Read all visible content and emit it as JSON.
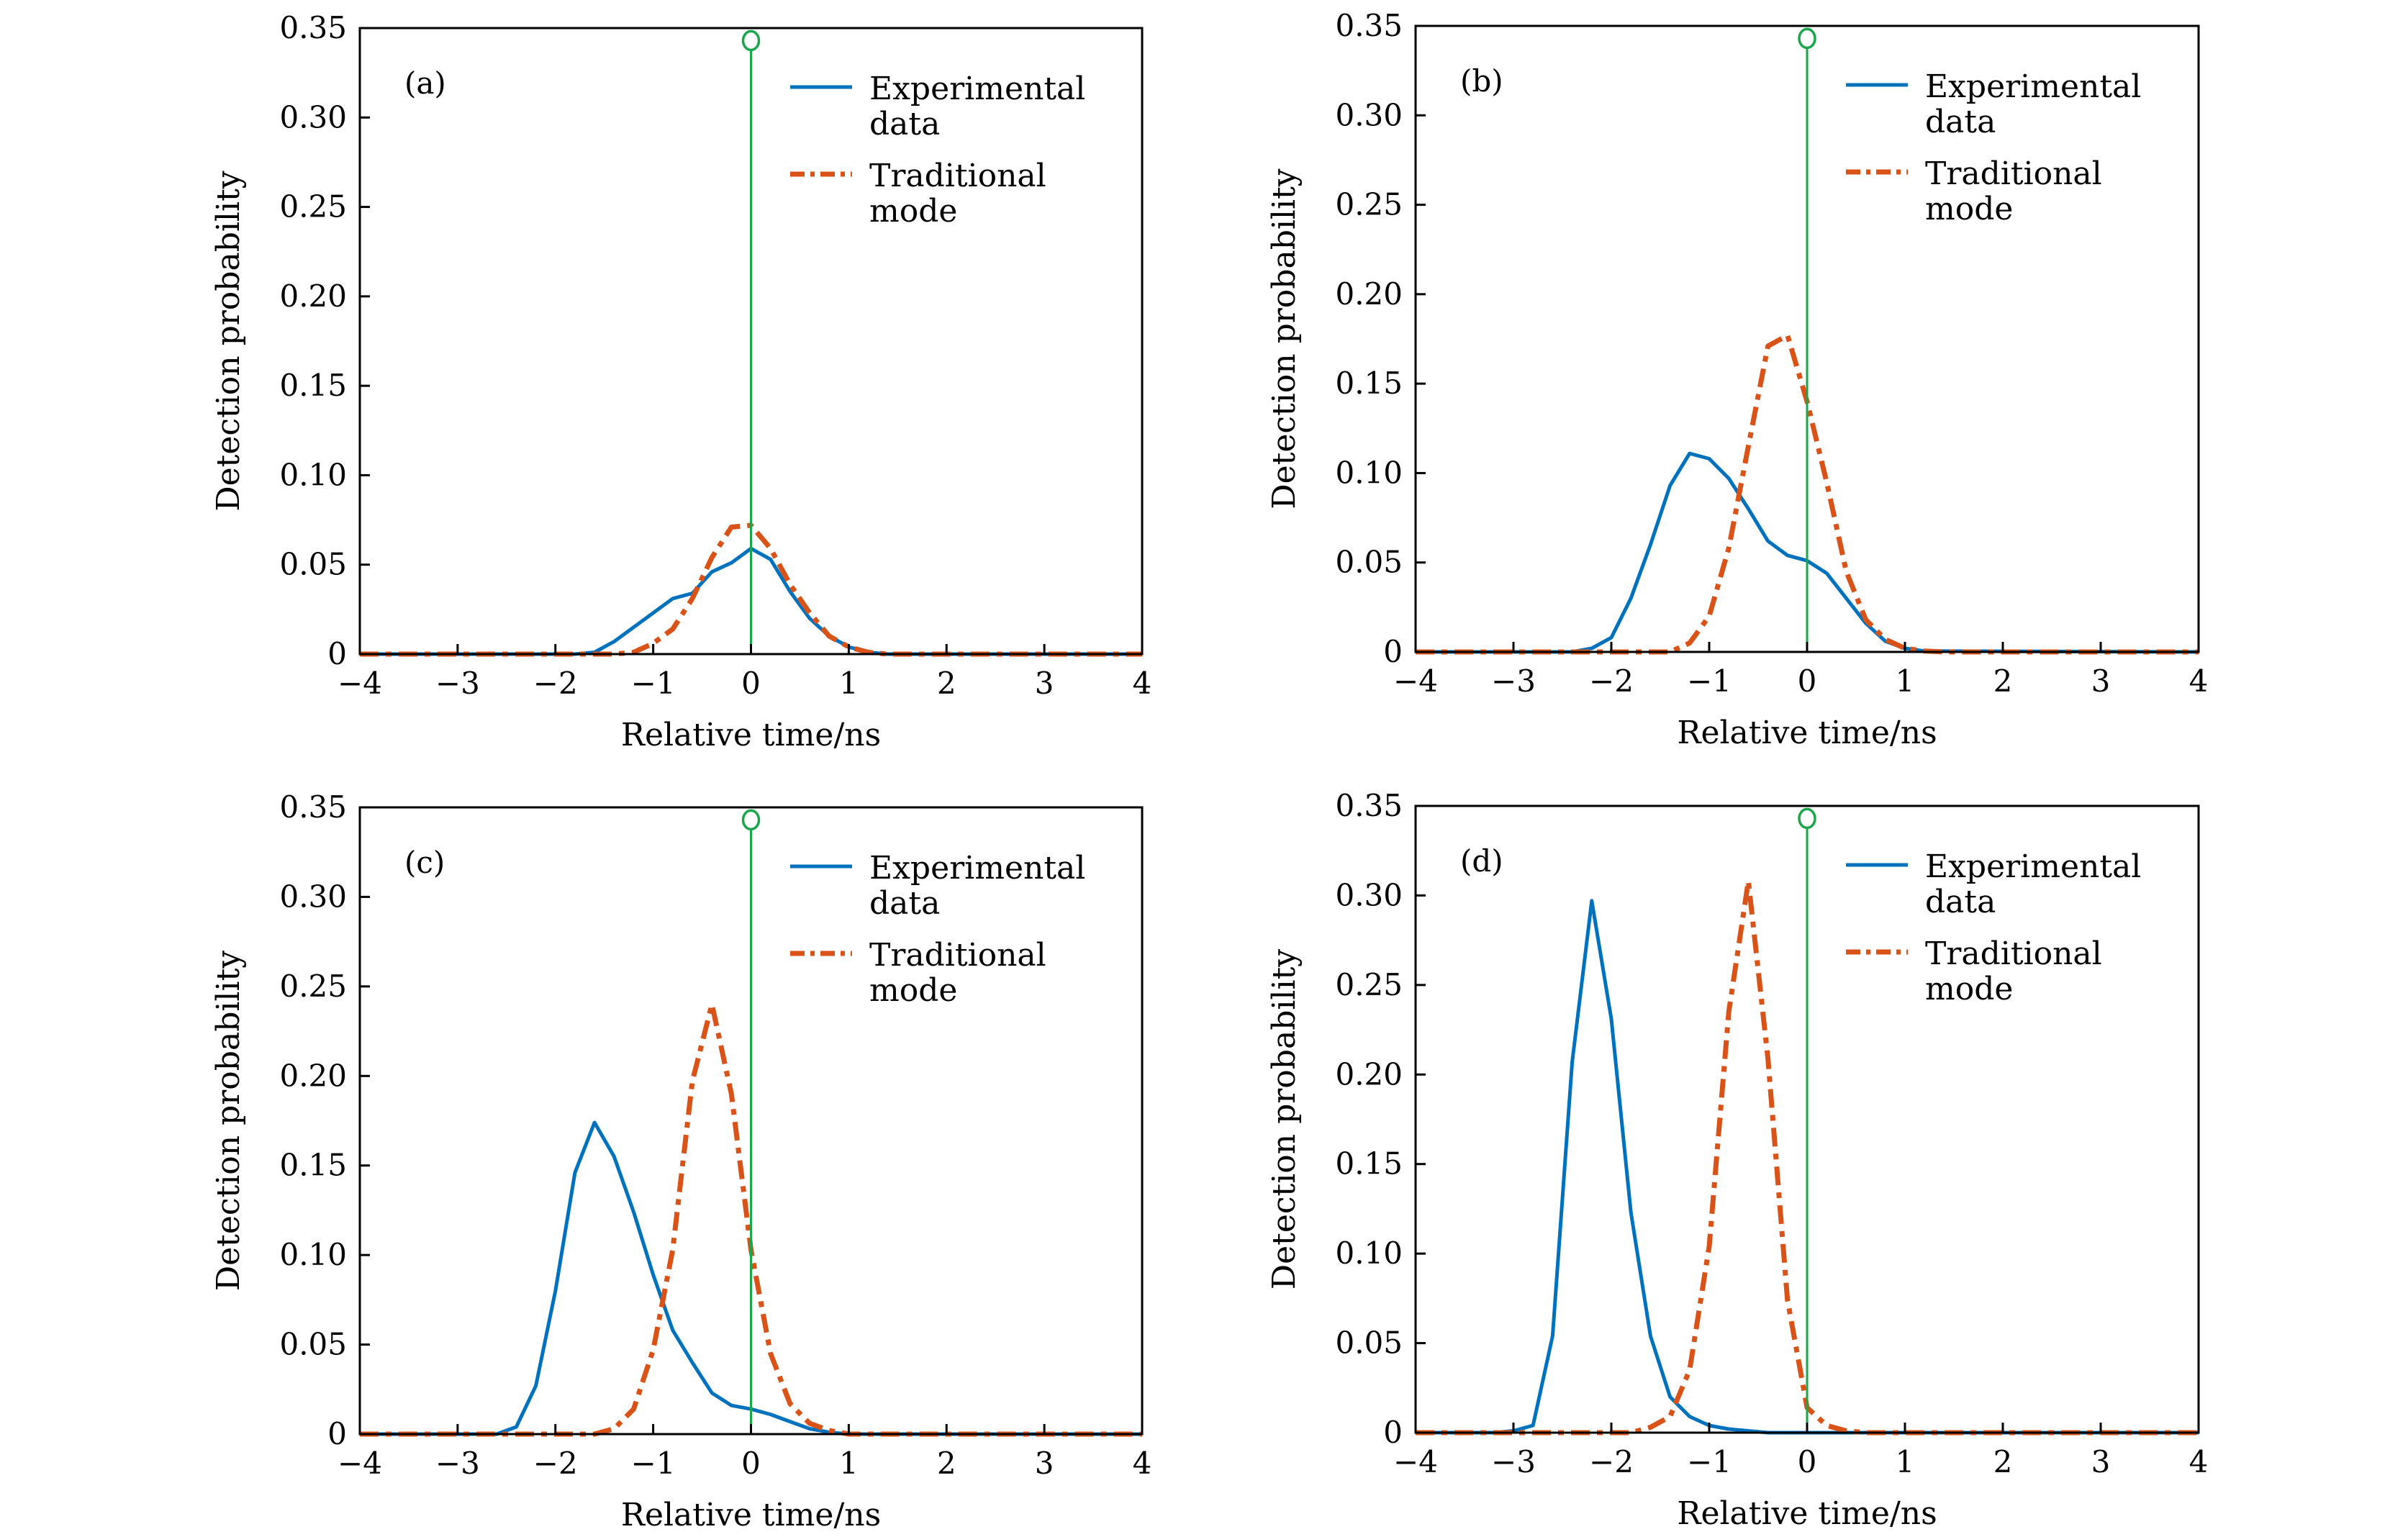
{
  "chart_data": [
    {
      "type": "line",
      "panel_label": "(a)",
      "xlabel": "Relative time/ns",
      "ylabel": "Detection probability",
      "xlim": [
        -4,
        4
      ],
      "ylim": [
        0,
        0.35
      ],
      "xticks": [
        "−4",
        "−3",
        "−2",
        "−1",
        "0",
        "1",
        "2",
        "3",
        "4"
      ],
      "yticks": [
        "0",
        "0.05",
        "0.10",
        "0.15",
        "0.20",
        "0.25",
        "0.30",
        "0.35"
      ],
      "legend": [
        "Experimental data",
        "Traditional mode"
      ],
      "legend_lines": [
        [
          "Experimental",
          "data"
        ],
        [
          "Traditional",
          "mode"
        ]
      ],
      "legend_position": "top-right",
      "reference_line_x": 0,
      "series": [
        {
          "name": "Experimental data",
          "style": "solid",
          "color": "#0072BD",
          "x": [
            -4,
            -1.8,
            -1.6,
            -1.4,
            -1.2,
            -1.0,
            -0.8,
            -0.6,
            -0.4,
            -0.2,
            0,
            0.2,
            0.4,
            0.6,
            0.8,
            1.0,
            1.2,
            1.4,
            4
          ],
          "y": [
            0,
            0,
            0.001,
            0.007,
            0.015,
            0.023,
            0.031,
            0.034,
            0.046,
            0.051,
            0.059,
            0.053,
            0.035,
            0.02,
            0.01,
            0.004,
            0.001,
            0,
            0
          ]
        },
        {
          "name": "Traditional mode",
          "style": "dashdot",
          "color": "#D95319",
          "x": [
            -4,
            -1.4,
            -1.2,
            -1.0,
            -0.8,
            -0.6,
            -0.4,
            -0.2,
            0,
            0.2,
            0.4,
            0.6,
            0.8,
            1.0,
            1.2,
            1.4,
            4
          ],
          "y": [
            0,
            0,
            0.001,
            0.006,
            0.014,
            0.031,
            0.054,
            0.071,
            0.072,
            0.059,
            0.039,
            0.023,
            0.01,
            0.004,
            0.001,
            0,
            0
          ]
        }
      ]
    },
    {
      "type": "line",
      "panel_label": "(b)",
      "xlabel": "Relative time/ns",
      "ylabel": "Detection probability",
      "xlim": [
        -4,
        4
      ],
      "ylim": [
        0,
        0.35
      ],
      "xticks": [
        "−4",
        "−3",
        "−2",
        "−1",
        "0",
        "1",
        "2",
        "3",
        "4"
      ],
      "yticks": [
        "0",
        "0.05",
        "0.10",
        "0.15",
        "0.20",
        "0.25",
        "0.30",
        "0.35"
      ],
      "legend": [
        "Experimental data",
        "Traditional mode"
      ],
      "legend_lines": [
        [
          "Experimental",
          "data"
        ],
        [
          "Traditional",
          "mode"
        ]
      ],
      "legend_position": "top-right",
      "reference_line_x": 0,
      "series": [
        {
          "name": "Experimental data",
          "style": "solid",
          "color": "#0072BD",
          "x": [
            -4,
            -2.4,
            -2.2,
            -2.0,
            -1.8,
            -1.6,
            -1.4,
            -1.2,
            -1.0,
            -0.8,
            -0.6,
            -0.4,
            -0.2,
            0,
            0.2,
            0.4,
            0.6,
            0.8,
            1.0,
            1.2,
            4
          ],
          "y": [
            0,
            0,
            0.002,
            0.008,
            0.03,
            0.06,
            0.093,
            0.111,
            0.108,
            0.097,
            0.08,
            0.062,
            0.054,
            0.051,
            0.044,
            0.03,
            0.016,
            0.006,
            0.002,
            0.0005,
            0
          ]
        },
        {
          "name": "Traditional mode",
          "style": "dashdot",
          "color": "#D95319",
          "x": [
            -4,
            -1.4,
            -1.2,
            -1.0,
            -0.8,
            -0.6,
            -0.4,
            -0.2,
            0,
            0.2,
            0.4,
            0.6,
            0.8,
            1.0,
            1.2,
            1.4,
            4
          ],
          "y": [
            0,
            0,
            0.005,
            0.02,
            0.058,
            0.115,
            0.171,
            0.177,
            0.14,
            0.095,
            0.045,
            0.018,
            0.007,
            0.002,
            0.0005,
            0,
            0
          ]
        }
      ]
    },
    {
      "type": "line",
      "panel_label": "(c)",
      "xlabel": "Relative time/ns",
      "ylabel": "Detection probability",
      "xlim": [
        -4,
        4
      ],
      "ylim": [
        0,
        0.35
      ],
      "xticks": [
        "−4",
        "−3",
        "−2",
        "−1",
        "0",
        "1",
        "2",
        "3",
        "4"
      ],
      "yticks": [
        "0",
        "0.05",
        "0.10",
        "0.15",
        "0.20",
        "0.25",
        "0.30",
        "0.35"
      ],
      "legend": [
        "Experimental data",
        "Traditional mode"
      ],
      "legend_lines": [
        [
          "Experimental",
          "data"
        ],
        [
          "Traditional",
          "mode"
        ]
      ],
      "legend_position": "top-right",
      "reference_line_x": 0,
      "series": [
        {
          "name": "Experimental data",
          "style": "solid",
          "color": "#0072BD",
          "x": [
            -4,
            -2.6,
            -2.4,
            -2.2,
            -2.0,
            -1.8,
            -1.6,
            -1.4,
            -1.2,
            -1.0,
            -0.8,
            -0.6,
            -0.4,
            -0.2,
            0,
            0.2,
            0.4,
            0.6,
            0.8,
            1.0,
            4
          ],
          "y": [
            0,
            0,
            0.004,
            0.027,
            0.08,
            0.146,
            0.174,
            0.155,
            0.124,
            0.089,
            0.058,
            0.04,
            0.023,
            0.016,
            0.014,
            0.011,
            0.007,
            0.003,
            0.001,
            0,
            0
          ]
        },
        {
          "name": "Traditional mode",
          "style": "dashdot",
          "color": "#D95319",
          "x": [
            -4,
            -1.6,
            -1.4,
            -1.2,
            -1.0,
            -0.8,
            -0.6,
            -0.4,
            -0.2,
            0,
            0.2,
            0.4,
            0.6,
            0.8,
            1.0,
            4
          ],
          "y": [
            0,
            0,
            0.003,
            0.014,
            0.047,
            0.103,
            0.197,
            0.24,
            0.19,
            0.103,
            0.045,
            0.017,
            0.006,
            0.002,
            0,
            0
          ]
        }
      ]
    },
    {
      "type": "line",
      "panel_label": "(d)",
      "xlabel": "Relative time/ns",
      "ylabel": "Detection probability",
      "xlim": [
        -4,
        4
      ],
      "ylim": [
        0,
        0.35
      ],
      "xticks": [
        "−4",
        "−3",
        "−2",
        "−1",
        "0",
        "1",
        "2",
        "3",
        "4"
      ],
      "yticks": [
        "0",
        "0.05",
        "0.10",
        "0.15",
        "0.20",
        "0.25",
        "0.30",
        "0.35"
      ],
      "legend": [
        "Experimental data",
        "Traditional mode"
      ],
      "legend_lines": [
        [
          "Experimental",
          "data"
        ],
        [
          "Traditional",
          "mode"
        ]
      ],
      "legend_position": "top-right",
      "reference_line_x": 0,
      "series": [
        {
          "name": "Experimental data",
          "style": "solid",
          "color": "#0072BD",
          "x": [
            -4,
            -3.2,
            -3.0,
            -2.8,
            -2.6,
            -2.4,
            -2.2,
            -2.0,
            -1.8,
            -1.6,
            -1.4,
            -1.2,
            -1.0,
            -0.8,
            -0.6,
            -0.4,
            4
          ],
          "y": [
            0,
            0,
            0.001,
            0.004,
            0.054,
            0.207,
            0.297,
            0.231,
            0.123,
            0.054,
            0.02,
            0.009,
            0.004,
            0.002,
            0.001,
            0,
            0
          ]
        },
        {
          "name": "Traditional mode",
          "style": "dashdot",
          "color": "#D95319",
          "x": [
            -4,
            -1.8,
            -1.6,
            -1.4,
            -1.2,
            -1.0,
            -0.8,
            -0.6,
            -0.4,
            -0.2,
            0,
            0.2,
            0.4,
            0.6,
            4
          ],
          "y": [
            0,
            0,
            0.003,
            0.009,
            0.035,
            0.104,
            0.235,
            0.308,
            0.209,
            0.074,
            0.014,
            0.004,
            0.001,
            0,
            0
          ]
        }
      ]
    }
  ],
  "colors": {
    "experimental": "#0072BD",
    "traditional": "#D95319",
    "reference": "#1AA64A"
  }
}
